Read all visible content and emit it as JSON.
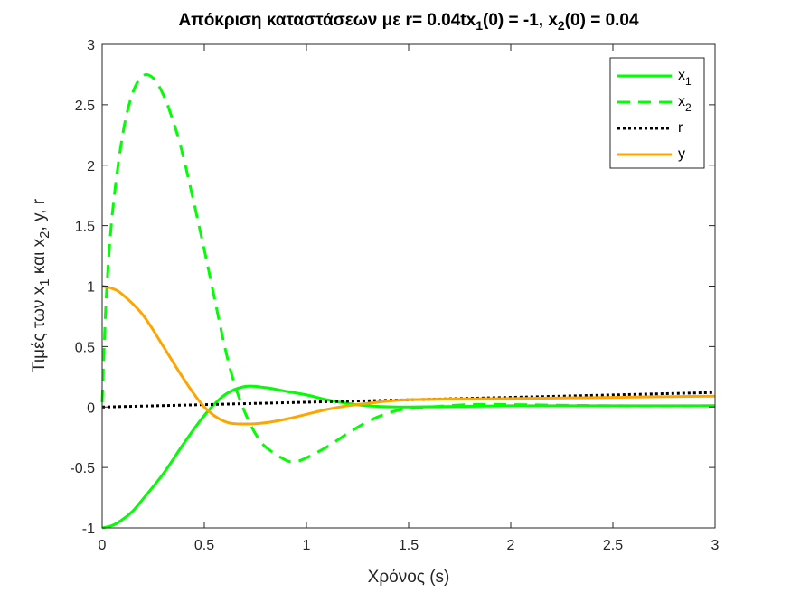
{
  "chart_data": {
    "type": "line",
    "title_parts": [
      "Απόκριση καταστάσεων με r= 0.04tx",
      "1",
      "(0) = -1, x",
      "2",
      "(0) = 0.04"
    ],
    "xlabel": "Χρόνος (s)",
    "ylabel_parts": [
      "Τιμές των x",
      "1",
      " και x",
      "2",
      ", y, r"
    ],
    "xlim": [
      0,
      3
    ],
    "ylim": [
      -1,
      3
    ],
    "xticks": [
      0,
      0.5,
      1,
      1.5,
      2,
      2.5,
      3
    ],
    "xtick_labels": [
      "0",
      "0.5",
      "1",
      "1.5",
      "2",
      "2.5",
      "3"
    ],
    "yticks": [
      -1,
      -0.5,
      0,
      0.5,
      1,
      1.5,
      2,
      2.5,
      3
    ],
    "ytick_labels": [
      "-1",
      "-0.5",
      "0",
      "0.5",
      "1",
      "1.5",
      "2",
      "2.5",
      "3"
    ],
    "grid": false,
    "legend_position": "top-right",
    "series": [
      {
        "name": "x",
        "sub": "1",
        "color": "#00ff00",
        "style": "solid",
        "x": [
          0,
          0.05,
          0.1,
          0.15,
          0.2,
          0.3,
          0.4,
          0.5,
          0.6,
          0.7,
          0.8,
          0.9,
          1.0,
          1.1,
          1.2,
          1.3,
          1.5,
          2.0,
          2.5,
          3.0
        ],
        "y": [
          -1,
          -0.98,
          -0.93,
          -0.86,
          -0.76,
          -0.55,
          -0.3,
          -0.07,
          0.1,
          0.17,
          0.16,
          0.13,
          0.1,
          0.06,
          0.03,
          0.01,
          0.0,
          0.01,
          0.01,
          0.01
        ]
      },
      {
        "name": "x",
        "sub": "2",
        "color": "#00ff00",
        "style": "dashed",
        "x": [
          0,
          0.02,
          0.05,
          0.1,
          0.15,
          0.2,
          0.25,
          0.3,
          0.35,
          0.4,
          0.5,
          0.6,
          0.65,
          0.7,
          0.75,
          0.8,
          0.9,
          0.95,
          1.0,
          1.1,
          1.2,
          1.3,
          1.4,
          1.5,
          1.6,
          1.8,
          2.0,
          2.5,
          3.0
        ],
        "y": [
          0.04,
          0.9,
          1.6,
          2.25,
          2.6,
          2.74,
          2.72,
          2.58,
          2.35,
          2.05,
          1.3,
          0.5,
          0.18,
          -0.05,
          -0.22,
          -0.33,
          -0.44,
          -0.45,
          -0.42,
          -0.33,
          -0.22,
          -0.12,
          -0.05,
          -0.01,
          0.0,
          0.02,
          0.02,
          0.01,
          0.01
        ]
      },
      {
        "name": "r",
        "sub": "",
        "color": "#000000",
        "style": "dotted",
        "x": [
          0,
          3
        ],
        "y": [
          0,
          0.12
        ]
      },
      {
        "name": "y",
        "sub": "",
        "color": "#ffa500",
        "style": "solid",
        "x": [
          0,
          0.05,
          0.1,
          0.2,
          0.3,
          0.4,
          0.5,
          0.6,
          0.7,
          0.8,
          0.9,
          1.0,
          1.1,
          1.2,
          1.3,
          1.5,
          2.0,
          2.5,
          3.0
        ],
        "y": [
          1,
          0.98,
          0.93,
          0.76,
          0.5,
          0.23,
          0.0,
          -0.12,
          -0.14,
          -0.13,
          -0.1,
          -0.06,
          -0.02,
          0.01,
          0.03,
          0.06,
          0.07,
          0.08,
          0.09
        ]
      }
    ]
  }
}
